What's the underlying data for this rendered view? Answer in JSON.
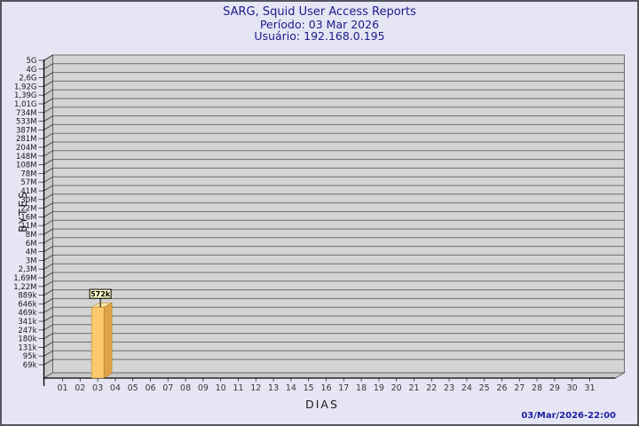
{
  "header": {
    "title": "SARG, Squid User Access Reports",
    "period_line": "Período: 03 Mar 2026",
    "user_line": "Usuário: 192.168.0.195"
  },
  "footer": {
    "timestamp": "03/Mar/2026-22:00"
  },
  "chart_data": {
    "type": "bar",
    "title": "SARG, Squid User Access Reports",
    "subtitle": [
      "Período: 03 Mar 2026",
      "Usuário: 192.168.0.195"
    ],
    "xlabel": "DIAS",
    "ylabel": "BYTES",
    "y_scale": "log",
    "grid": "horizontal",
    "x_categories": [
      "01",
      "02",
      "03",
      "04",
      "05",
      "06",
      "07",
      "08",
      "09",
      "10",
      "11",
      "12",
      "13",
      "14",
      "15",
      "16",
      "17",
      "18",
      "19",
      "20",
      "21",
      "22",
      "23",
      "24",
      "25",
      "26",
      "27",
      "28",
      "29",
      "30",
      "31"
    ],
    "y_tick_labels": [
      "5G",
      "4G",
      "2,6G",
      "1,92G",
      "1,39G",
      "1,01G",
      "734M",
      "533M",
      "387M",
      "281M",
      "204M",
      "148M",
      "108M",
      "78M",
      "57M",
      "41M",
      "30M",
      "22M",
      "16M",
      "11M",
      "8M",
      "6M",
      "4M",
      "3M",
      "2,3M",
      "1,69M",
      "1,22M",
      "889k",
      "646k",
      "469k",
      "341k",
      "247k",
      "180k",
      "131k",
      "95k",
      "69k"
    ],
    "y_tick_values": [
      5000000000,
      4000000000,
      2600000000,
      1920000000,
      1390000000,
      1010000000,
      734000000,
      533000000,
      387000000,
      281000000,
      204000000,
      148000000,
      108000000,
      78000000,
      57000000,
      41000000,
      30000000,
      22000000,
      16000000,
      11000000,
      8000000,
      6000000,
      4000000,
      3000000,
      2300000,
      1690000,
      1220000,
      889000,
      646000,
      469000,
      341000,
      247000,
      180000,
      131000,
      95000,
      69000
    ],
    "bars": [
      {
        "category": "03",
        "value": 572000,
        "label": "572k"
      }
    ],
    "colors": {
      "background": "#e5e5f4",
      "wall": "#d4d4d4",
      "side_wall": "#c9c9c9",
      "floor": "#c9c9c9",
      "gridline": "#6e6e6e",
      "wall_edge": "#555555",
      "axis": "#000000",
      "tick_text": "#1a1a1a",
      "day_text": "#3a3a3a",
      "bar_front": "#fdc96d",
      "bar_side": "#dfa348",
      "bar_top": "#fbe3a0",
      "bar_edge": "#a07828",
      "flag_bg": "#ffffc8",
      "flag_border": "#000000",
      "flag_text": "#000000",
      "title_color": "#1b1b8c",
      "timestamp_color": "#2020a0"
    }
  }
}
